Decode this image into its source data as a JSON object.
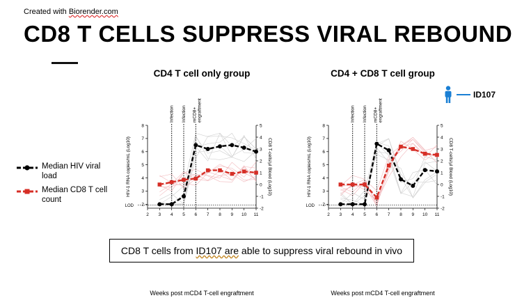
{
  "header": {
    "credit_prefix": "Created with ",
    "credit_brand": "Biorender.com",
    "title": "CD8 T CELLS SUPPRESS VIRAL REBOUND"
  },
  "legend": {
    "items": [
      {
        "label": "Median HIV viral load",
        "color": "#000000"
      },
      {
        "label": "Median CD8 T cell count",
        "color": "#d62e26"
      }
    ]
  },
  "id_key": {
    "label": "ID107",
    "color": "#1a7fd4",
    "icon": "person-icon"
  },
  "conclusion": {
    "before": "CD8 T cells from ",
    "highlight": "ID107 are",
    "after": " able to suppress viral rebound in vivo"
  },
  "chart_data": [
    {
      "type": "line",
      "title": "CD4 T cell only group",
      "xlabel": "Weeks post mCD4 T-cell engraftment",
      "ylabel_left": "HIV-1 RNA copies/mL (Log10)",
      "ylabel_right": "CD8 T-cells/µl Blood (Log10)",
      "x_ticks": [
        2,
        3,
        4,
        5,
        6,
        7,
        8,
        9,
        10,
        11
      ],
      "y_left_ticks": [
        2,
        3,
        4,
        5,
        6,
        7,
        8
      ],
      "y_left_extra_label": "LOD",
      "y_right_ticks": [
        -2,
        -1,
        0,
        1,
        2,
        3,
        4,
        5
      ],
      "ylim_left": [
        1.7,
        8
      ],
      "ylim_right": [
        -2,
        5
      ],
      "annotations": [
        {
          "x": 4,
          "text": "Infection"
        },
        {
          "x": 5,
          "text": "Infection"
        },
        {
          "x": 6,
          "text": "mCD8+ engraftment"
        }
      ],
      "series": [
        {
          "name": "Median HIV viral load",
          "axis": "left",
          "color": "#000000",
          "x": [
            3,
            4,
            5,
            6,
            7,
            8,
            9,
            10,
            11
          ],
          "values": [
            2.0,
            2.0,
            2.6,
            6.5,
            6.2,
            6.4,
            6.5,
            6.3,
            6.0
          ]
        },
        {
          "name": "Median CD8 T cell count",
          "axis": "right",
          "color": "#d62e26",
          "x": [
            3,
            4,
            5,
            6,
            7,
            8,
            9,
            10,
            11
          ],
          "values": [
            0.0,
            0.2,
            0.4,
            0.5,
            1.2,
            1.2,
            0.9,
            1.1,
            1.0
          ]
        }
      ]
    },
    {
      "type": "line",
      "title": "CD4 + CD8 T cell group",
      "xlabel": "Weeks post mCD4 T-cell engraftment",
      "ylabel_left": "HIV-1 RNA copies/mL (Log10)",
      "ylabel_right": "CD8 T-cells/µl Blood (Log10)",
      "x_ticks": [
        2,
        3,
        4,
        5,
        6,
        7,
        8,
        9,
        10,
        11
      ],
      "y_left_ticks": [
        2,
        3,
        4,
        5,
        6,
        7,
        8
      ],
      "y_left_extra_label": "LOD",
      "y_right_ticks": [
        -2,
        -1,
        0,
        1,
        2,
        3,
        4,
        5
      ],
      "ylim_left": [
        1.7,
        8
      ],
      "ylim_right": [
        -2,
        5
      ],
      "annotations": [
        {
          "x": 4,
          "text": "Infection"
        },
        {
          "x": 5,
          "text": "Infection"
        },
        {
          "x": 6,
          "text": "mCD8+ engraftment"
        }
      ],
      "series": [
        {
          "name": "Median HIV viral load",
          "axis": "left",
          "color": "#000000",
          "x": [
            3,
            4,
            5,
            6,
            7,
            8,
            9,
            10,
            11
          ],
          "values": [
            2.0,
            2.0,
            2.0,
            6.6,
            6.1,
            3.9,
            3.4,
            4.6,
            4.5
          ]
        },
        {
          "name": "Median CD8 T cell count",
          "axis": "right",
          "color": "#d62e26",
          "x": [
            3,
            4,
            5,
            6,
            7,
            8,
            9,
            10,
            11
          ],
          "values": [
            0.0,
            0.0,
            0.0,
            -1.1,
            1.6,
            3.2,
            3.0,
            2.6,
            2.5
          ]
        }
      ]
    }
  ]
}
